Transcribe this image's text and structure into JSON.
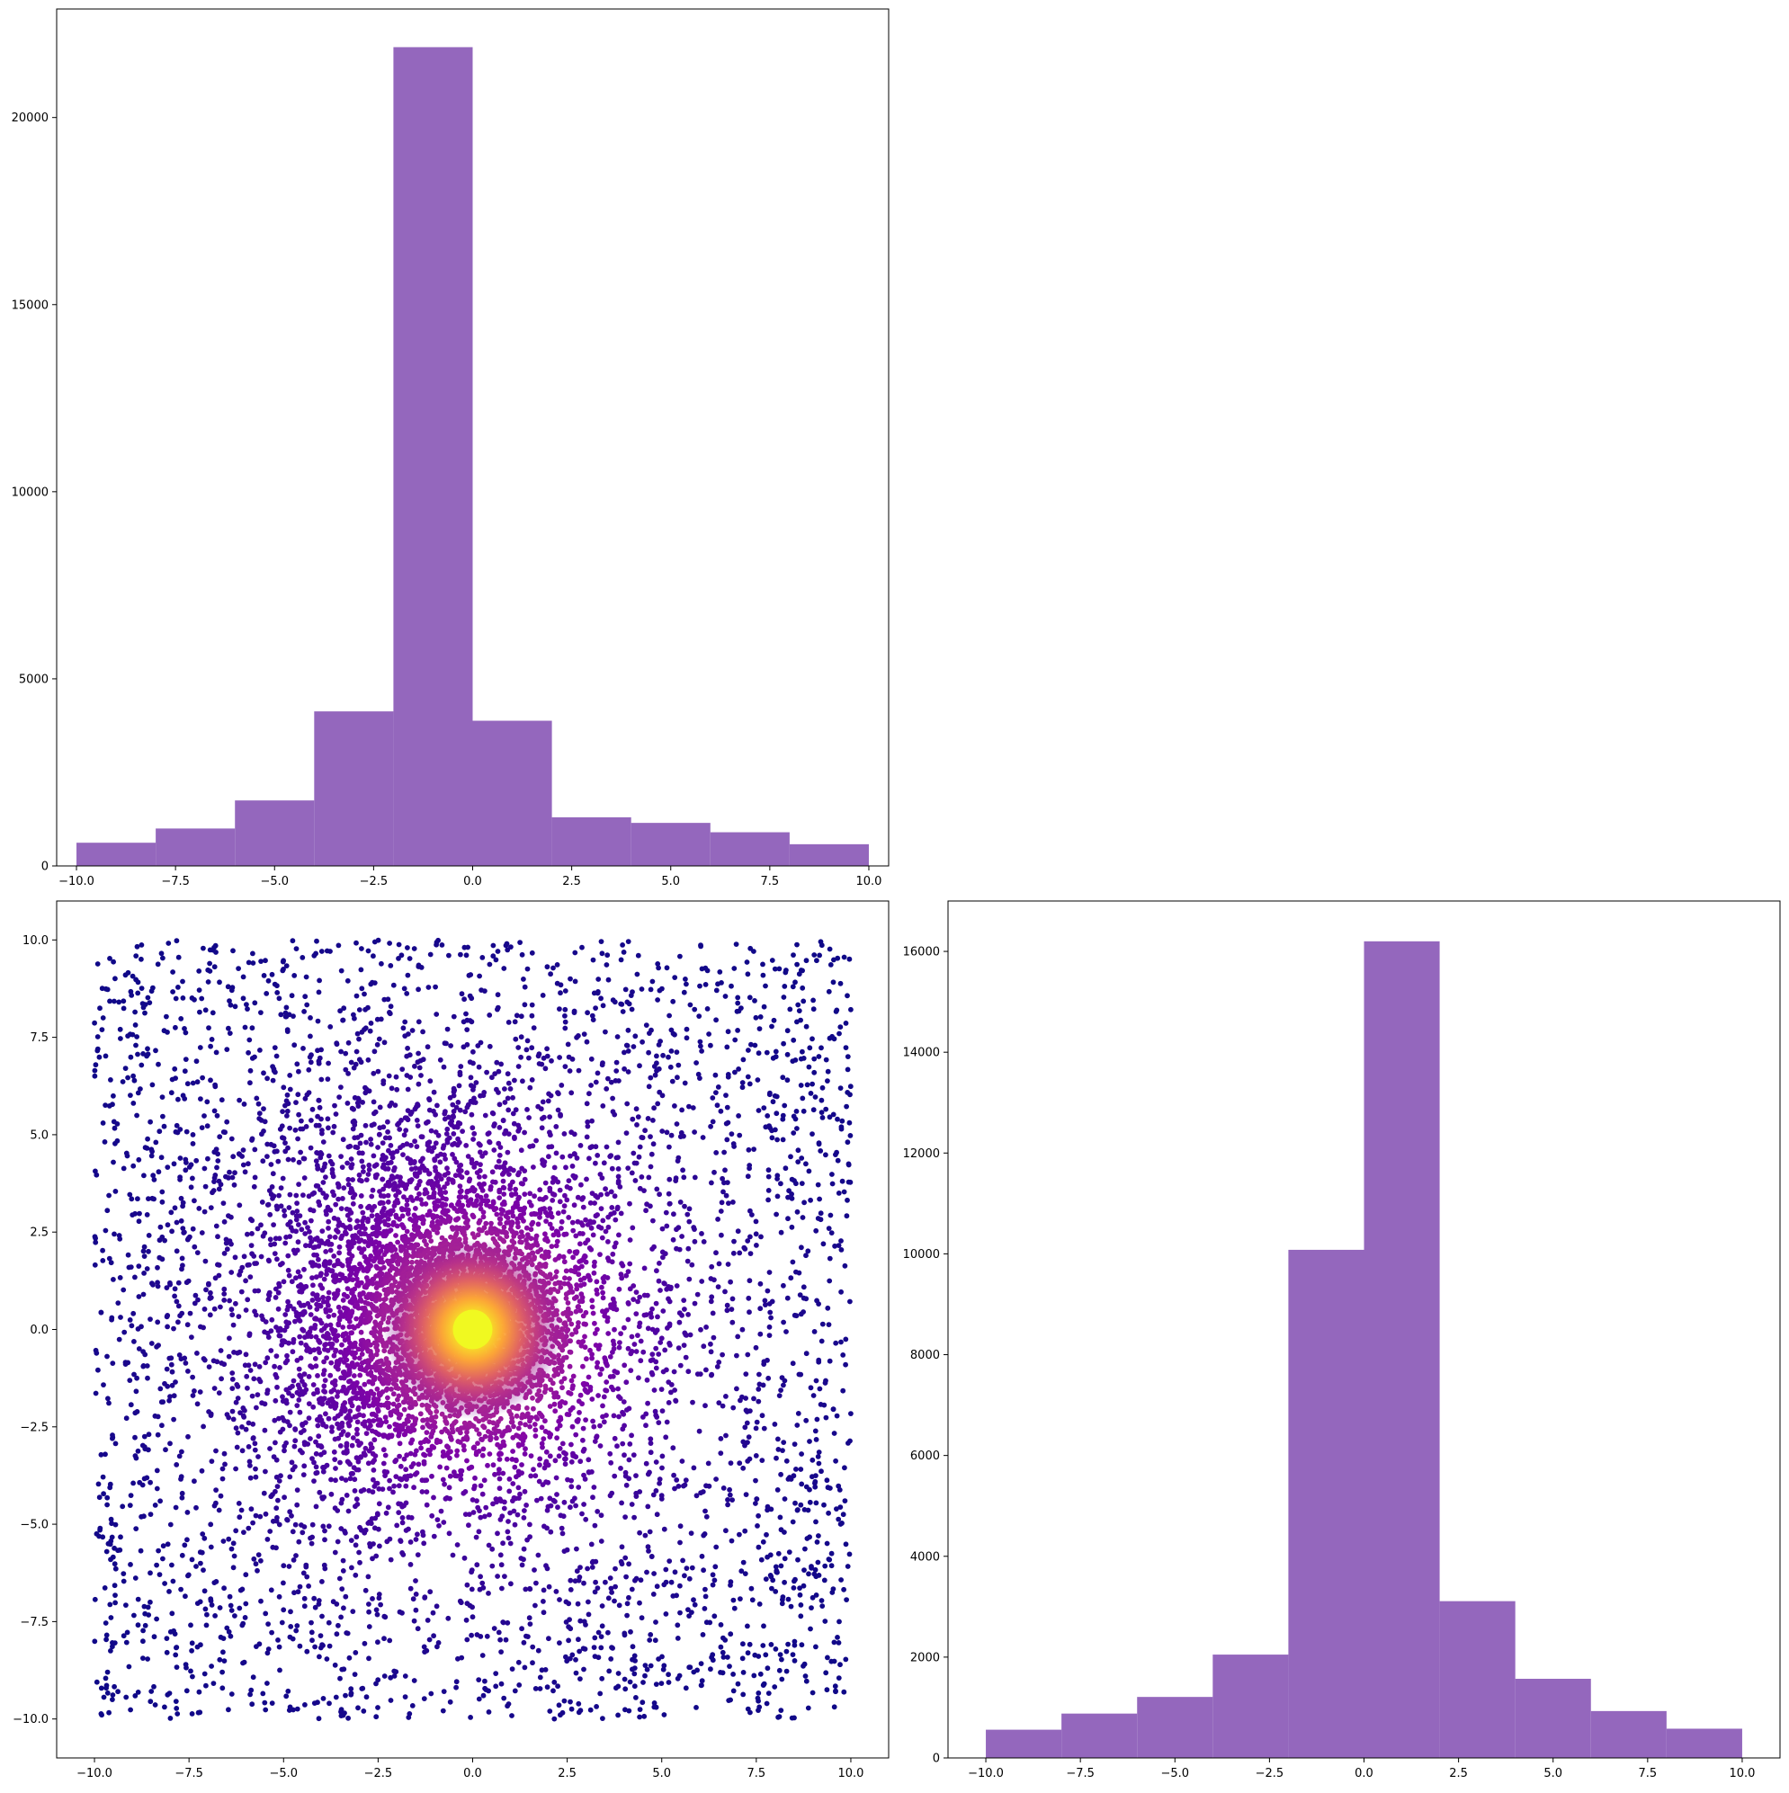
{
  "chart_data": [
    {
      "id": "top-left",
      "type": "bar",
      "subtype": "histogram",
      "bin_edges": [
        -10,
        -8,
        -6,
        -4,
        -2,
        0,
        2,
        4,
        6,
        8,
        10
      ],
      "values": [
        620,
        1000,
        1750,
        4130,
        21880,
        3880,
        1300,
        1150,
        900,
        580
      ],
      "xlim": [
        -10.5,
        10.5
      ],
      "ylim": [
        0,
        22900
      ],
      "xticks": [
        -10,
        -7.5,
        -5,
        -2.5,
        0,
        2.5,
        5,
        7.5,
        10
      ],
      "xtick_labels": [
        "−10.0",
        "−7.5",
        "−5.0",
        "−2.5",
        "0.0",
        "2.5",
        "5.0",
        "7.5",
        "10.0"
      ],
      "yticks": [
        0,
        5000,
        10000,
        15000,
        20000
      ],
      "ytick_labels": [
        "0",
        "5000",
        "10000",
        "15000",
        "20000"
      ],
      "color": "#9467bd",
      "grid": false
    },
    {
      "id": "bottom-left",
      "type": "scatter",
      "description_colormap": "plasma",
      "points_generated": 10000,
      "x_range": [
        -10,
        10
      ],
      "y_range": [
        -10,
        10
      ],
      "center": [
        0,
        0
      ],
      "xlim": [
        -11,
        11
      ],
      "ylim": [
        -11,
        11
      ],
      "xticks": [
        -10,
        -7.5,
        -5,
        -2.5,
        0,
        2.5,
        5,
        7.5,
        10
      ],
      "xtick_labels": [
        "−10.0",
        "−7.5",
        "−5.0",
        "−2.5",
        "0.0",
        "2.5",
        "5.0",
        "7.5",
        "10.0"
      ],
      "yticks": [
        -10,
        -7.5,
        -5,
        -2.5,
        0,
        2.5,
        5,
        7.5,
        10
      ],
      "ytick_labels": [
        "−10.0",
        "−7.5",
        "−5.0",
        "−2.5",
        "0.0",
        "2.5",
        "5.0",
        "7.5",
        "10.0"
      ],
      "grid": false
    },
    {
      "id": "bottom-right",
      "type": "bar",
      "subtype": "histogram",
      "bin_edges": [
        -10,
        -8,
        -6,
        -4,
        -2,
        0,
        2,
        4,
        6,
        8,
        10
      ],
      "values": [
        560,
        880,
        1210,
        2050,
        10080,
        16200,
        3110,
        1570,
        930,
        580
      ],
      "xlim": [
        -11,
        11
      ],
      "ylim": [
        0,
        17000
      ],
      "xticks": [
        -10,
        -7.5,
        -5,
        -2.5,
        0,
        2.5,
        5,
        7.5,
        10
      ],
      "xtick_labels": [
        "−10.0",
        "−7.5",
        "−5.0",
        "−2.5",
        "0.0",
        "2.5",
        "5.0",
        "7.5",
        "10.0"
      ],
      "yticks": [
        0,
        2000,
        4000,
        6000,
        8000,
        10000,
        12000,
        14000,
        16000
      ],
      "ytick_labels": [
        "0",
        "2000",
        "4000",
        "6000",
        "8000",
        "10000",
        "12000",
        "14000",
        "16000"
      ],
      "color": "#9467bd",
      "grid": false
    }
  ]
}
